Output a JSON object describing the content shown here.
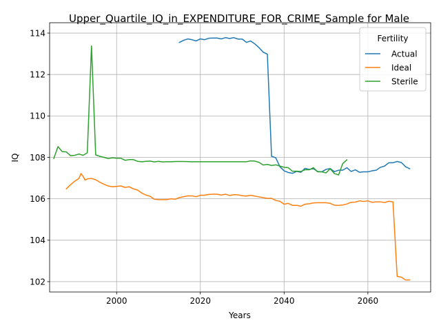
{
  "chart_data": {
    "type": "line",
    "title": "Upper_Quartile_IQ_in_EXPENDITURE_FOR_CRIME_Sample for Male",
    "xlabel": "Years",
    "ylabel": "IQ",
    "xlim": [
      1984,
      2075
    ],
    "ylim": [
      101.5,
      114.5
    ],
    "xticks": [
      2000,
      2020,
      2040,
      2060
    ],
    "yticks": [
      102,
      104,
      106,
      108,
      110,
      112,
      114
    ],
    "grid": true,
    "legend": {
      "title": "Fertility",
      "placement": "top-right",
      "entries": [
        "Actual",
        "Ideal",
        "Sterile"
      ]
    },
    "series": [
      {
        "name": "Actual",
        "color": "#1f77b4",
        "points": [
          [
            2015,
            113.55
          ],
          [
            2016,
            113.65
          ],
          [
            2017,
            113.72
          ],
          [
            2018,
            113.68
          ],
          [
            2019,
            113.62
          ],
          [
            2020,
            113.72
          ],
          [
            2021,
            113.68
          ],
          [
            2022,
            113.75
          ],
          [
            2023,
            113.76
          ],
          [
            2024,
            113.76
          ],
          [
            2025,
            113.72
          ],
          [
            2026,
            113.78
          ],
          [
            2027,
            113.74
          ],
          [
            2028,
            113.78
          ],
          [
            2029,
            113.71
          ],
          [
            2030,
            113.71
          ],
          [
            2031,
            113.55
          ],
          [
            2032,
            113.62
          ],
          [
            2033,
            113.48
          ],
          [
            2034,
            113.3
          ],
          [
            2035,
            113.08
          ],
          [
            2036,
            112.98
          ],
          [
            2037,
            108.05
          ],
          [
            2038,
            107.98
          ],
          [
            2039,
            107.55
          ],
          [
            2040,
            107.35
          ],
          [
            2041,
            107.27
          ],
          [
            2042,
            107.23
          ],
          [
            2043,
            107.32
          ],
          [
            2044,
            107.28
          ],
          [
            2045,
            107.47
          ],
          [
            2046,
            107.42
          ],
          [
            2047,
            107.45
          ],
          [
            2048,
            107.32
          ],
          [
            2049,
            107.3
          ],
          [
            2050,
            107.42
          ],
          [
            2051,
            107.46
          ],
          [
            2052,
            107.31
          ],
          [
            2053,
            107.38
          ],
          [
            2054,
            107.38
          ],
          [
            2055,
            107.5
          ],
          [
            2056,
            107.32
          ],
          [
            2057,
            107.4
          ],
          [
            2058,
            107.28
          ],
          [
            2059,
            107.3
          ],
          [
            2060,
            107.3
          ],
          [
            2061,
            107.35
          ],
          [
            2062,
            107.38
          ],
          [
            2063,
            107.52
          ],
          [
            2064,
            107.58
          ],
          [
            2065,
            107.74
          ],
          [
            2066,
            107.74
          ],
          [
            2067,
            107.8
          ],
          [
            2068,
            107.75
          ],
          [
            2069,
            107.55
          ],
          [
            2070,
            107.45
          ]
        ]
      },
      {
        "name": "Ideal",
        "color": "#ff7f0e",
        "points": [
          [
            1988,
            106.48
          ],
          [
            1989,
            106.68
          ],
          [
            1990,
            106.85
          ],
          [
            1991,
            106.98
          ],
          [
            1991.5,
            107.22
          ],
          [
            1992,
            107.08
          ],
          [
            1992.5,
            106.9
          ],
          [
            1993,
            106.96
          ],
          [
            1994,
            106.98
          ],
          [
            1995,
            106.92
          ],
          [
            1996,
            106.8
          ],
          [
            1997,
            106.7
          ],
          [
            1998,
            106.62
          ],
          [
            1999,
            106.58
          ],
          [
            2000,
            106.6
          ],
          [
            2001,
            106.62
          ],
          [
            2002,
            106.55
          ],
          [
            2003,
            106.58
          ],
          [
            2004,
            106.48
          ],
          [
            2005,
            106.42
          ],
          [
            2006,
            106.28
          ],
          [
            2007,
            106.18
          ],
          [
            2008,
            106.12
          ],
          [
            2009,
            105.98
          ],
          [
            2010,
            105.96
          ],
          [
            2011,
            105.96
          ],
          [
            2012,
            105.96
          ],
          [
            2013,
            106.0
          ],
          [
            2014,
            105.98
          ],
          [
            2015,
            106.06
          ],
          [
            2016,
            106.1
          ],
          [
            2017,
            106.14
          ],
          [
            2018,
            106.14
          ],
          [
            2019,
            106.1
          ],
          [
            2020,
            106.17
          ],
          [
            2021,
            106.17
          ],
          [
            2022,
            106.21
          ],
          [
            2023,
            106.22
          ],
          [
            2024,
            106.22
          ],
          [
            2025,
            106.18
          ],
          [
            2026,
            106.22
          ],
          [
            2027,
            106.16
          ],
          [
            2028,
            106.2
          ],
          [
            2029,
            106.19
          ],
          [
            2030,
            106.15
          ],
          [
            2031,
            106.13
          ],
          [
            2032,
            106.17
          ],
          [
            2033,
            106.13
          ],
          [
            2034,
            106.09
          ],
          [
            2035,
            106.06
          ],
          [
            2036,
            106.02
          ],
          [
            2037,
            106.02
          ],
          [
            2038,
            105.92
          ],
          [
            2039,
            105.88
          ],
          [
            2040,
            105.74
          ],
          [
            2041,
            105.78
          ],
          [
            2042,
            105.68
          ],
          [
            2043,
            105.68
          ],
          [
            2044,
            105.64
          ],
          [
            2045,
            105.74
          ],
          [
            2046,
            105.76
          ],
          [
            2047,
            105.8
          ],
          [
            2048,
            105.81
          ],
          [
            2049,
            105.81
          ],
          [
            2050,
            105.81
          ],
          [
            2051,
            105.78
          ],
          [
            2052,
            105.69
          ],
          [
            2053,
            105.68
          ],
          [
            2054,
            105.7
          ],
          [
            2055,
            105.75
          ],
          [
            2056,
            105.83
          ],
          [
            2057,
            105.84
          ],
          [
            2058,
            105.9
          ],
          [
            2059,
            105.87
          ],
          [
            2060,
            105.9
          ],
          [
            2061,
            105.83
          ],
          [
            2062,
            105.85
          ],
          [
            2063,
            105.85
          ],
          [
            2064,
            105.82
          ],
          [
            2065,
            105.88
          ],
          [
            2066,
            105.85
          ],
          [
            2067,
            102.25
          ],
          [
            2068,
            102.22
          ],
          [
            2069,
            102.08
          ],
          [
            2070,
            102.08
          ]
        ]
      },
      {
        "name": "Sterile",
        "color": "#2ca02c",
        "points": [
          [
            1985,
            107.95
          ],
          [
            1986,
            108.52
          ],
          [
            1987,
            108.28
          ],
          [
            1988,
            108.26
          ],
          [
            1989,
            108.08
          ],
          [
            1990,
            108.1
          ],
          [
            1991,
            108.16
          ],
          [
            1992,
            108.1
          ],
          [
            1993,
            108.22
          ],
          [
            1994,
            113.38
          ],
          [
            1995,
            108.12
          ],
          [
            1996,
            108.05
          ],
          [
            1997,
            108.0
          ],
          [
            1998,
            107.94
          ],
          [
            1999,
            107.98
          ],
          [
            2000,
            107.96
          ],
          [
            2001,
            107.96
          ],
          [
            2002,
            107.86
          ],
          [
            2003,
            107.89
          ],
          [
            2004,
            107.89
          ],
          [
            2005,
            107.81
          ],
          [
            2006,
            107.79
          ],
          [
            2007,
            107.81
          ],
          [
            2008,
            107.82
          ],
          [
            2009,
            107.78
          ],
          [
            2010,
            107.81
          ],
          [
            2011,
            107.78
          ],
          [
            2012,
            107.79
          ],
          [
            2013,
            107.79
          ],
          [
            2014,
            107.8
          ],
          [
            2016,
            107.8
          ],
          [
            2018,
            107.79
          ],
          [
            2020,
            107.79
          ],
          [
            2025,
            107.79
          ],
          [
            2030,
            107.79
          ],
          [
            2031,
            107.79
          ],
          [
            2032,
            107.83
          ],
          [
            2033,
            107.82
          ],
          [
            2034,
            107.76
          ],
          [
            2035,
            107.63
          ],
          [
            2036,
            107.66
          ],
          [
            2037,
            107.61
          ],
          [
            2038,
            107.64
          ],
          [
            2039,
            107.58
          ],
          [
            2040,
            107.52
          ],
          [
            2041,
            107.5
          ],
          [
            2042,
            107.33
          ],
          [
            2043,
            107.33
          ],
          [
            2044,
            107.32
          ],
          [
            2045,
            107.4
          ],
          [
            2046,
            107.4
          ],
          [
            2047,
            107.5
          ],
          [
            2048,
            107.3
          ],
          [
            2049,
            107.3
          ],
          [
            2050,
            107.25
          ],
          [
            2051,
            107.45
          ],
          [
            2052,
            107.22
          ],
          [
            2053,
            107.15
          ],
          [
            2054,
            107.7
          ],
          [
            2055,
            107.88
          ]
        ]
      }
    ]
  }
}
